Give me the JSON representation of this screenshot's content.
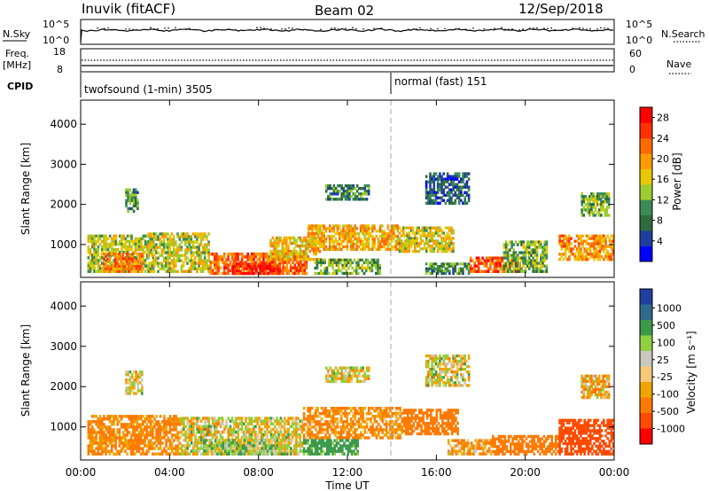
{
  "header": {
    "station": "Inuvik (fitACF)",
    "beam": "Beam 02",
    "date": "12/Sep/2018"
  },
  "strip_labels": {
    "nsky": "N.Sky",
    "nsearch": "N.Search",
    "freq": "Freq.",
    "freq_unit": "[MHz]",
    "nave": "Nave",
    "cpid": "CPID"
  },
  "strip_ticks": {
    "nsky_top": "10^5",
    "nsky_bottom": "10^0",
    "nsearch_top": "10^5",
    "nsearch_bottom": "10^0",
    "freq_top": "18",
    "freq_bottom": "8",
    "nave_top": "60",
    "nave_bottom": "0"
  },
  "cpid_segments": [
    {
      "label": "twofsound (1-min) 3505",
      "start_ut": "00:00",
      "end_ut": "14:00"
    },
    {
      "label": "normal (fast) 151",
      "start_ut": "14:00",
      "end_ut": "24:00"
    }
  ],
  "colors": {
    "power": [
      "#0000ff",
      "#1d3f9f",
      "#2e6b3e",
      "#3c8b57",
      "#9ccc2e",
      "#e8c800",
      "#ff9a00",
      "#ff6a00",
      "#ff3000",
      "#ff0000"
    ],
    "velocity": [
      "#ff0000",
      "#ff4a00",
      "#ff7a00",
      "#f0a400",
      "#f5c87a",
      "#c8c8c0",
      "#90d040",
      "#3c9a4a",
      "#2e6b8a",
      "#1f3fa0"
    ]
  },
  "chart_data": [
    {
      "type": "heatmap",
      "panel": "power",
      "ylabel": "Slant Range [km]",
      "yticks": [
        "1000",
        "2000",
        "3000",
        "4000"
      ],
      "ylim": [
        180,
        4600
      ],
      "xlim": [
        0,
        24
      ],
      "colorbar_label": "Power [dB]",
      "colorbar_ticks": [
        "4",
        "8",
        "12",
        "16",
        "20",
        "24",
        "28"
      ],
      "colorbar_range": [
        0,
        30
      ],
      "dashed_marker_ut": 14,
      "blobs": [
        {
          "x0": 0.3,
          "x1": 3.3,
          "r0": 300,
          "r1": 1250,
          "value": 14
        },
        {
          "x0": 1.0,
          "x1": 2.8,
          "r0": 300,
          "r1": 800,
          "value": 22
        },
        {
          "x0": 3.0,
          "x1": 5.8,
          "r0": 300,
          "r1": 1300,
          "value": 15
        },
        {
          "x0": 5.8,
          "x1": 10.2,
          "r0": 250,
          "r1": 800,
          "value": 23
        },
        {
          "x0": 6.8,
          "x1": 9.0,
          "r0": 250,
          "r1": 550,
          "value": 27
        },
        {
          "x0": 8.5,
          "x1": 10.8,
          "r0": 600,
          "r1": 1200,
          "value": 18
        },
        {
          "x0": 10.2,
          "x1": 14.3,
          "r0": 850,
          "r1": 1500,
          "value": 19
        },
        {
          "x0": 10.5,
          "x1": 13.5,
          "r0": 250,
          "r1": 650,
          "value": 12
        },
        {
          "x0": 14.3,
          "x1": 16.8,
          "r0": 800,
          "r1": 1450,
          "value": 16
        },
        {
          "x0": 15.5,
          "x1": 17.5,
          "r0": 250,
          "r1": 550,
          "value": 10
        },
        {
          "x0": 17.5,
          "x1": 19.8,
          "r0": 300,
          "r1": 700,
          "value": 24
        },
        {
          "x0": 19.0,
          "x1": 21.0,
          "r0": 300,
          "r1": 1100,
          "value": 12
        },
        {
          "x0": 21.5,
          "x1": 24.0,
          "r0": 600,
          "r1": 1250,
          "value": 20
        },
        {
          "x0": 15.5,
          "x1": 17.5,
          "r0": 2000,
          "r1": 2800,
          "value": 7
        },
        {
          "x0": 11.0,
          "x1": 13.0,
          "r0": 2100,
          "r1": 2500,
          "value": 9
        },
        {
          "x0": 2.0,
          "x1": 2.6,
          "r0": 1800,
          "r1": 2400,
          "value": 10
        },
        {
          "x0": 22.5,
          "x1": 23.8,
          "r0": 1700,
          "r1": 2300,
          "value": 12
        }
      ]
    },
    {
      "type": "heatmap",
      "panel": "velocity",
      "ylabel": "Slant Range [km]",
      "yticks": [
        "1000",
        "2000",
        "3000",
        "4000"
      ],
      "ylim": [
        180,
        4600
      ],
      "xlim": [
        0,
        24
      ],
      "xlabel": "Time UT",
      "xticks": [
        "00:00",
        "04:00",
        "08:00",
        "12:00",
        "16:00",
        "20:00",
        "00:00"
      ],
      "colorbar_label": "Velocity [m s⁻¹]",
      "colorbar_ticks": [
        "1000",
        "500",
        "100",
        "25",
        "-25",
        "-100",
        "-500",
        "-1000"
      ],
      "dashed_marker_ut": 14,
      "blobs": [
        {
          "x0": 0.3,
          "x1": 4.5,
          "r0": 300,
          "r1": 1300,
          "value": -150
        },
        {
          "x0": 4.5,
          "x1": 10.0,
          "r0": 300,
          "r1": 1250,
          "value": 0
        },
        {
          "x0": 5.5,
          "x1": 9.5,
          "r0": 300,
          "r1": 700,
          "value": 60
        },
        {
          "x0": 10.0,
          "x1": 14.5,
          "r0": 700,
          "r1": 1500,
          "value": -120
        },
        {
          "x0": 10.0,
          "x1": 12.5,
          "r0": 300,
          "r1": 700,
          "value": 200
        },
        {
          "x0": 14.5,
          "x1": 17.0,
          "r0": 800,
          "r1": 1450,
          "value": -250
        },
        {
          "x0": 16.5,
          "x1": 18.5,
          "r0": 300,
          "r1": 700,
          "value": -90
        },
        {
          "x0": 18.5,
          "x1": 21.5,
          "r0": 300,
          "r1": 800,
          "value": -300
        },
        {
          "x0": 21.5,
          "x1": 24.0,
          "r0": 300,
          "r1": 1200,
          "value": -700
        },
        {
          "x0": 15.5,
          "x1": 17.5,
          "r0": 2000,
          "r1": 2800,
          "value": 0
        },
        {
          "x0": 11.0,
          "x1": 13.0,
          "r0": 2100,
          "r1": 2500,
          "value": 0
        },
        {
          "x0": 2.0,
          "x1": 2.8,
          "r0": 1800,
          "r1": 2400,
          "value": 0
        },
        {
          "x0": 22.5,
          "x1": 23.8,
          "r0": 1700,
          "r1": 2300,
          "value": -60
        }
      ]
    }
  ]
}
